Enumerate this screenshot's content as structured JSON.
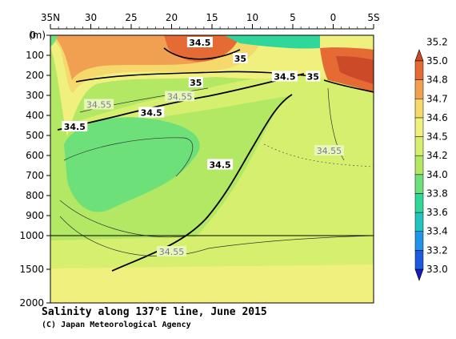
{
  "chart_data": {
    "type": "heatmap",
    "title": "Salinity along 137°E line, June 2015",
    "credit": "(C) Japan Meteorological Agency",
    "ylabel_unit": "(m)",
    "x_ticks": [
      {
        "lat": 35,
        "label": "35N"
      },
      {
        "lat": 30,
        "label": "30"
      },
      {
        "lat": 25,
        "label": "25"
      },
      {
        "lat": 20,
        "label": "20"
      },
      {
        "lat": 15,
        "label": "15"
      },
      {
        "lat": 10,
        "label": "10"
      },
      {
        "lat": 5,
        "label": "5"
      },
      {
        "lat": 0,
        "label": "0"
      },
      {
        "lat": -5,
        "label": "5S"
      }
    ],
    "y_ticks_upper": [
      {
        "depth": 0,
        "label": "0"
      },
      {
        "depth": 100,
        "label": "100"
      },
      {
        "depth": 200,
        "label": "200"
      },
      {
        "depth": 300,
        "label": "300"
      },
      {
        "depth": 400,
        "label": "400"
      },
      {
        "depth": 500,
        "label": "500"
      },
      {
        "depth": 600,
        "label": "600"
      },
      {
        "depth": 700,
        "label": "700"
      },
      {
        "depth": 800,
        "label": "800"
      },
      {
        "depth": 900,
        "label": "900"
      },
      {
        "depth": 1000,
        "label": "1000"
      }
    ],
    "y_ticks_lower": [
      {
        "depth": 1500,
        "label": "1500"
      },
      {
        "depth": 2000,
        "label": "2000"
      }
    ],
    "x_range": [
      35,
      -5
    ],
    "data_lat_range": [
      33.5,
      -2
    ],
    "depth_axis_break": 1000,
    "colorbar": {
      "levels": [
        33.0,
        33.2,
        33.4,
        33.6,
        33.8,
        34.0,
        34.2,
        34.5,
        34.6,
        34.7,
        34.8,
        35.0,
        35.2
      ],
      "colors": [
        "#1a1ab8",
        "#1c5ae0",
        "#1f94e8",
        "#22c4c0",
        "#2fd89a",
        "#6ee07a",
        "#b2e864",
        "#d6ef6e",
        "#f0f07e",
        "#f6d86c",
        "#f0a050",
        "#e66a34",
        "#cc4a28"
      ]
    },
    "contour_labels": [
      {
        "text": "34.5",
        "lat": 16.5,
        "depth": 40,
        "style": "bold"
      },
      {
        "text": "35",
        "lat": 11.5,
        "depth": 120,
        "style": "bold"
      },
      {
        "text": "35",
        "lat": 17,
        "depth": 240,
        "style": "bold"
      },
      {
        "text": "34.5",
        "lat": 6,
        "depth": 210,
        "style": "bold"
      },
      {
        "text": "35",
        "lat": 2.5,
        "depth": 210,
        "style": "bold"
      },
      {
        "text": "34.55",
        "lat": 19,
        "depth": 310,
        "style": "thin"
      },
      {
        "text": "34.55",
        "lat": 29,
        "depth": 350,
        "style": "thin"
      },
      {
        "text": "34.5",
        "lat": 22.5,
        "depth": 390,
        "style": "bold"
      },
      {
        "text": "34.5",
        "lat": 32,
        "depth": 460,
        "style": "bold"
      },
      {
        "text": "34.55",
        "lat": 0.5,
        "depth": 580,
        "style": "thin"
      },
      {
        "text": "34.5",
        "lat": 14,
        "depth": 650,
        "style": "bold"
      },
      {
        "text": "34.55",
        "lat": 20,
        "depth": 1250,
        "style": "thin"
      }
    ]
  },
  "colors": {
    "bold_contour": "#000000",
    "thin_contour": "#333333",
    "frame": "#000000"
  }
}
